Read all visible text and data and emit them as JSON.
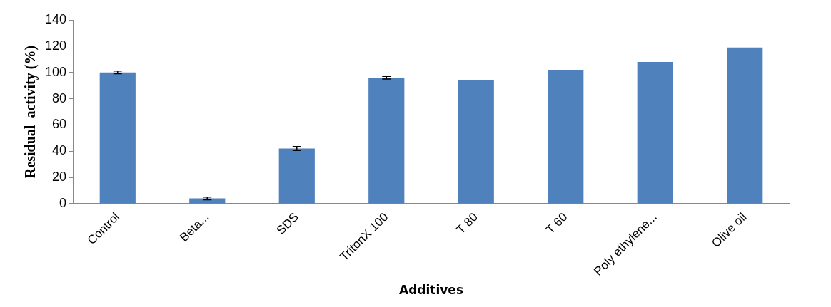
{
  "chart_data": {
    "type": "bar",
    "xlabel": "Additives",
    "ylabel": "Residual  activity (%)",
    "categories": [
      "Control",
      "Beta...",
      "SDS",
      "TritonX 100",
      "T 80",
      "T 60",
      "Poly ethylene...",
      "Olive oil"
    ],
    "values": [
      100,
      4,
      42,
      96,
      94,
      102,
      108,
      119
    ],
    "errors": [
      1,
      1,
      1.5,
      1,
      null,
      null,
      null,
      null
    ],
    "color": "#4f81bd",
    "ylim": [
      0,
      140
    ],
    "yticks": [
      0,
      20,
      40,
      60,
      80,
      100,
      120,
      140
    ],
    "grid": false,
    "legend": false
  }
}
